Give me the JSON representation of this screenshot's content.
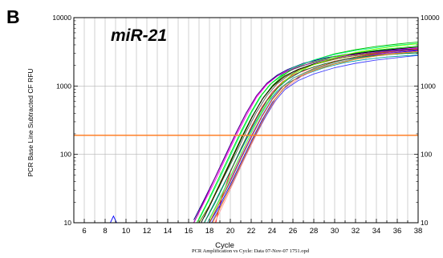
{
  "panel_letter": "B",
  "gene_label": "miR-21",
  "footer_text": "PCR Amplification vs Cycle: Data 07-Nov-07 1751.opd",
  "chart_data": {
    "type": "line",
    "title": "",
    "xlabel": "Cycle",
    "ylabel": "PCR Base Line Subtracted CF RFU",
    "xlim": [
      5,
      38
    ],
    "ylim": [
      10,
      10000
    ],
    "y_scale": "log",
    "x_ticks": [
      6,
      8,
      10,
      12,
      14,
      16,
      18,
      20,
      22,
      24,
      26,
      28,
      30,
      32,
      34,
      36,
      38
    ],
    "y_ticks": [
      10,
      100,
      1000,
      10000
    ],
    "y_tick_labels": [
      "10",
      "100",
      "1000",
      "10000"
    ],
    "grid": true,
    "threshold": {
      "value": 190,
      "color": "#ff7f27"
    },
    "curve_colors": [
      "#00c000",
      "#ff00ff",
      "#000080",
      "#00a0a0",
      "#ff0000",
      "#8000ff",
      "#606060",
      "#808000",
      "#0000ff",
      "#00ff80",
      "#c06000",
      "#ffa0a0",
      "#00e000",
      "#4040ff",
      "#000000",
      "#40c0c0",
      "#a000a0",
      "#80ff00",
      "#008040",
      "#ff8000"
    ],
    "series": [
      {
        "x": [
          17,
          18,
          19,
          20,
          21,
          22,
          23,
          24,
          25,
          26,
          28,
          30,
          32,
          34,
          36,
          38
        ],
        "values": [
          10,
          18,
          35,
          75,
          160,
          330,
          620,
          1000,
          1400,
          1800,
          2400,
          2950,
          3400,
          3800,
          4100,
          4400
        ]
      },
      {
        "x": [
          16.5,
          17.5,
          18.5,
          19.5,
          20.5,
          21.5,
          22.5,
          23.5,
          24.5,
          25.5,
          27,
          29,
          31,
          33,
          35,
          38
        ],
        "values": [
          10,
          20,
          40,
          85,
          180,
          360,
          680,
          1050,
          1400,
          1700,
          2100,
          2550,
          2900,
          3150,
          3350,
          3600
        ]
      },
      {
        "x": [
          16.5,
          17.5,
          18.5,
          19.5,
          20.5,
          21.5,
          22.5,
          23.5,
          24.5,
          25.5,
          27,
          29,
          31,
          33,
          35,
          38
        ],
        "values": [
          11,
          22,
          45,
          95,
          200,
          400,
          720,
          1100,
          1450,
          1750,
          2150,
          2550,
          2850,
          3100,
          3300,
          3500
        ]
      },
      {
        "x": [
          17.5,
          18.5,
          19.5,
          20.5,
          21.5,
          22.5,
          23.5,
          24.5,
          25.5,
          27,
          29,
          31,
          33,
          35,
          38
        ],
        "values": [
          10,
          20,
          40,
          80,
          160,
          310,
          560,
          850,
          1100,
          1450,
          1850,
          2200,
          2450,
          2650,
          2850
        ]
      },
      {
        "x": [
          18.6,
          19.2,
          20,
          21,
          22,
          23,
          24,
          25,
          26,
          28,
          30,
          32,
          34,
          36,
          38
        ],
        "values": [
          10,
          24,
          55,
          120,
          250,
          480,
          800,
          1150,
          1450,
          1900,
          2300,
          2650,
          2900,
          3100,
          3300
        ]
      },
      {
        "x": [
          18,
          19,
          20,
          21,
          22,
          23,
          24,
          25,
          26,
          28,
          30,
          32,
          34,
          36,
          38
        ],
        "values": [
          10,
          20,
          42,
          90,
          185,
          360,
          640,
          980,
          1300,
          1800,
          2250,
          2650,
          2950,
          3200,
          3400
        ]
      },
      {
        "x": [
          17.5,
          18.5,
          19.5,
          20.5,
          21.5,
          22.5,
          23.5,
          24.5,
          25.5,
          27,
          29,
          31,
          33,
          35,
          38
        ],
        "values": [
          12,
          25,
          50,
          100,
          210,
          410,
          720,
          1080,
          1400,
          1850,
          2300,
          2650,
          2900,
          3150,
          3400
        ]
      },
      {
        "x": [
          17,
          18,
          19,
          20,
          21,
          22,
          23,
          24,
          25,
          26,
          28,
          30,
          32,
          34,
          36,
          38
        ],
        "values": [
          10,
          18,
          38,
          80,
          170,
          340,
          620,
          960,
          1300,
          1600,
          2050,
          2450,
          2800,
          3050,
          3250,
          3450
        ]
      },
      {
        "x": [
          18,
          19,
          20,
          21,
          22,
          23,
          24,
          25,
          26,
          28,
          30,
          32,
          34,
          36,
          38
        ],
        "values": [
          10,
          18,
          36,
          75,
          155,
          310,
          570,
          880,
          1200,
          1700,
          2150,
          2550,
          2850,
          3100,
          3300
        ]
      },
      {
        "x": [
          17,
          18,
          19,
          20,
          21,
          22,
          23,
          24,
          25,
          26,
          28,
          30,
          32,
          34,
          36,
          38
        ],
        "values": [
          11,
          22,
          45,
          95,
          200,
          400,
          730,
          1120,
          1500,
          1850,
          2400,
          2900,
          3300,
          3650,
          3950,
          4200
        ]
      },
      {
        "x": [
          18,
          19,
          20,
          21,
          22,
          23,
          24,
          25,
          26,
          28,
          30,
          32,
          34,
          36,
          38
        ],
        "values": [
          10,
          20,
          40,
          85,
          175,
          350,
          630,
          960,
          1300,
          1800,
          2250,
          2650,
          3000,
          3250,
          3500
        ]
      },
      {
        "x": [
          18.5,
          19.5,
          20.5,
          21.5,
          22.5,
          23.5,
          24.5,
          25.5,
          27,
          29,
          31,
          33,
          35,
          38
        ],
        "values": [
          10,
          21,
          45,
          95,
          195,
          380,
          660,
          980,
          1450,
          1950,
          2350,
          2700,
          2950,
          3200
        ]
      },
      {
        "x": [
          16.8,
          17.8,
          18.8,
          19.8,
          20.8,
          21.8,
          22.8,
          23.8,
          25,
          26,
          28,
          30,
          32,
          34,
          36,
          38
        ],
        "values": [
          10,
          20,
          42,
          88,
          185,
          370,
          680,
          1050,
          1450,
          1750,
          2250,
          2700,
          3050,
          3350,
          3600,
          3850
        ]
      },
      {
        "x": [
          18.2,
          19.2,
          20.2,
          21.2,
          22.2,
          23.2,
          24.2,
          25.2,
          26.5,
          28,
          30,
          32,
          34,
          36,
          38
        ],
        "values": [
          10,
          19,
          38,
          80,
          165,
          320,
          580,
          880,
          1200,
          1500,
          1850,
          2150,
          2400,
          2600,
          2800
        ]
      },
      {
        "x": [
          17.2,
          18.2,
          19.2,
          20.2,
          21.2,
          22.2,
          23.2,
          24.2,
          25.2,
          26.5,
          28,
          30,
          32,
          34,
          36,
          38
        ],
        "values": [
          10,
          20,
          42,
          90,
          190,
          380,
          690,
          1050,
          1400,
          1750,
          2100,
          2550,
          2950,
          3250,
          3500,
          3700
        ]
      },
      {
        "x": [
          17.8,
          18.8,
          19.8,
          20.8,
          21.8,
          22.8,
          23.8,
          24.8,
          26,
          28,
          30,
          32,
          34,
          36,
          38
        ],
        "values": [
          10,
          20,
          41,
          86,
          178,
          350,
          620,
          940,
          1300,
          1750,
          2150,
          2500,
          2750,
          2950,
          3100
        ]
      },
      {
        "x": [
          16.5,
          17.5,
          18.5,
          19.5,
          20.5,
          21.5,
          22.5,
          23.5,
          24.5,
          25.5,
          27,
          29,
          31,
          33,
          35,
          38
        ],
        "values": [
          10,
          21,
          44,
          92,
          195,
          390,
          710,
          1080,
          1400,
          1650,
          2000,
          2400,
          2750,
          3000,
          3200,
          3400
        ]
      },
      {
        "x": [
          18,
          19,
          20,
          21,
          22,
          23,
          24,
          25,
          26,
          28,
          30,
          32,
          34,
          36,
          38
        ],
        "values": [
          11,
          22,
          46,
          98,
          205,
          410,
          740,
          1120,
          1500,
          2050,
          2600,
          3100,
          3500,
          3850,
          4150
        ]
      },
      {
        "x": [
          17.5,
          18.5,
          19.5,
          20.5,
          21.5,
          22.5,
          23.5,
          24.5,
          25.5,
          27,
          29,
          31,
          33,
          35,
          38
        ],
        "values": [
          10,
          19,
          39,
          82,
          170,
          335,
          610,
          930,
          1250,
          1700,
          2100,
          2450,
          2700,
          2900,
          3050
        ]
      },
      {
        "x": [
          18.3,
          19.3,
          20.3,
          21.3,
          22.3,
          23.3,
          24.3,
          25.3,
          26.5,
          28,
          30,
          32,
          34,
          36,
          38
        ],
        "values": [
          10,
          20,
          42,
          88,
          182,
          360,
          650,
          990,
          1350,
          1700,
          2100,
          2450,
          2750,
          3000,
          3200
        ]
      }
    ],
    "baseline_spike": {
      "x": [
        8.5,
        8.8,
        9.1
      ],
      "values": [
        10,
        12.5,
        10
      ],
      "color": "#0000ff"
    }
  }
}
